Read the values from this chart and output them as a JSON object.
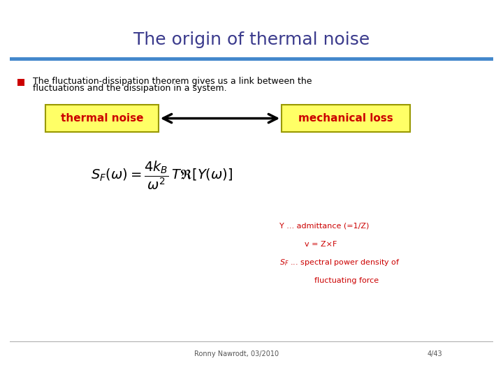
{
  "title": "The origin of thermal noise",
  "title_color": "#3a3a8c",
  "title_fontsize": 18,
  "bg_color": "#ffffff",
  "bullet_text_line1": "The fluctuation-dissipation theorem gives us a link between the",
  "bullet_text_line2": "fluctuations and the dissipation in a system.",
  "bullet_color": "#000000",
  "bullet_marker_color": "#cc0000",
  "box1_text": "thermal noise",
  "box2_text": "mechanical loss",
  "box_bg_color": "#ffff66",
  "box_border_color": "#999900",
  "box_text_color": "#cc0000",
  "arrow_color": "#000000",
  "note_line1": "Y ... admittance (=1/Z)",
  "note_line2": "v = Z×F",
  "note_line3c": " ... spectral power density of",
  "note_line4": "    fluctuating force",
  "note_color": "#cc0000",
  "footer_left": "Ronny Nawrodt, 03/2010",
  "footer_right": "4/43",
  "footer_color": "#555555",
  "separator_color": "#4488cc"
}
